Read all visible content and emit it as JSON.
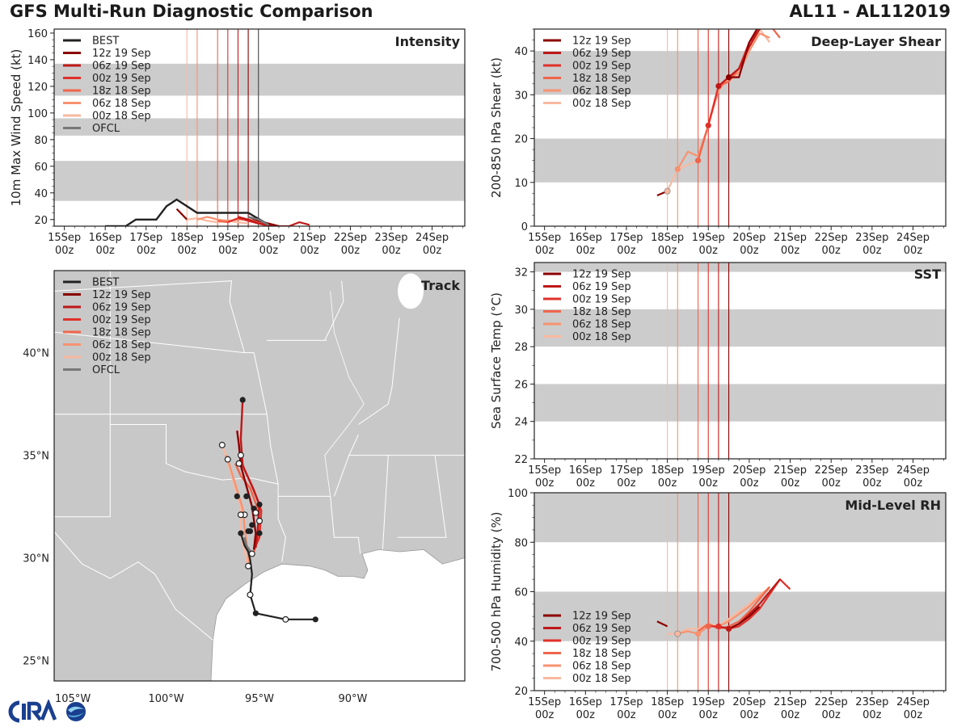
{
  "header": {
    "title": "GFS Multi-Run Diagnostic Comparison",
    "storm": "AL11 - AL112019"
  },
  "colors": {
    "band": "#cccccc",
    "best": "#222222",
    "ofcl": "#777777",
    "land": "#c8c8c8",
    "ocean": "#ffffff",
    "border": "#ffffff"
  },
  "runs": [
    {
      "name": "12z 19 Sep",
      "color": "#8b0000",
      "init_day": 19.5
    },
    {
      "name": "06z 19 Sep",
      "color": "#c01818",
      "init_day": 19.25
    },
    {
      "name": "00z 19 Sep",
      "color": "#e0302a",
      "init_day": 19.0
    },
    {
      "name": "18z 18 Sep",
      "color": "#f0654b",
      "init_day": 18.75
    },
    {
      "name": "06z 18 Sep",
      "color": "#f79270",
      "init_day": 18.25
    },
    {
      "name": "00z 18 Sep",
      "color": "#f9b9a0",
      "init_day": 18.0
    }
  ],
  "xaxis": {
    "days": [
      15,
      16,
      17,
      18,
      19,
      20,
      21,
      22,
      23,
      24
    ],
    "labels": [
      "15Sep",
      "16Sep",
      "17Sep",
      "18Sep",
      "19Sep",
      "20Sep",
      "21Sep",
      "22Sep",
      "23Sep",
      "24Sep"
    ],
    "sublabels": [
      "00z",
      "00z",
      "00z",
      "00z",
      "00z",
      "00z",
      "00z",
      "00z",
      "00z",
      "00z"
    ],
    "range": [
      14.75,
      24.8
    ]
  },
  "chart_data": [
    {
      "id": "intensity",
      "type": "line",
      "title": "Intensity",
      "ylabel": "10m Max Wind Speed (kt)",
      "ylim": [
        15,
        163
      ],
      "yticks": [
        20,
        40,
        60,
        80,
        100,
        120,
        140,
        160
      ],
      "bands": [
        [
          34,
          64
        ],
        [
          83,
          96
        ],
        [
          113,
          137
        ]
      ],
      "legend": [
        "BEST",
        "12z 19 Sep",
        "06z 19 Sep",
        "00z 19 Sep",
        "18z 18 Sep",
        "06z 18 Sep",
        "00z 18 Sep",
        "OFCL"
      ],
      "init_lines": [
        18.0,
        18.25,
        18.75,
        19.0,
        19.25,
        19.5,
        19.75
      ],
      "best": {
        "x": [
          16.0,
          16.5,
          16.75,
          17.25,
          17.5,
          17.75,
          18.25,
          18.5,
          19.0,
          19.5,
          20.0
        ],
        "y": [
          15,
          15,
          20,
          20,
          30,
          35,
          25,
          25,
          25,
          25,
          16
        ]
      },
      "ofcl": {
        "x": [
          19.5,
          19.75,
          20.0
        ],
        "y": [
          22,
          20,
          16
        ]
      },
      "series": [
        {
          "run": 0,
          "x": [
            19.5,
            19.75,
            20.0,
            20.25
          ],
          "y": [
            22,
            19,
            17,
            15
          ]
        },
        {
          "run": 1,
          "x": [
            19.25,
            19.5,
            19.75,
            20.0,
            20.25,
            20.5,
            20.75,
            21.0
          ],
          "y": [
            22,
            20,
            17,
            16,
            15,
            15,
            18,
            16
          ]
        },
        {
          "run": 2,
          "x": [
            19.0,
            19.25,
            19.5,
            19.75,
            20.0
          ],
          "y": [
            18,
            21,
            19,
            17,
            15
          ]
        },
        {
          "run": 3,
          "x": [
            18.75,
            19.0,
            19.25,
            19.5,
            19.75,
            20.0
          ],
          "y": [
            19,
            18,
            21,
            20,
            18,
            16
          ]
        },
        {
          "run": 4,
          "x": [
            18.25,
            18.5,
            18.75,
            19.0,
            19.25,
            19.5,
            19.75,
            20.0,
            20.25
          ],
          "y": [
            20,
            22,
            20,
            19,
            20,
            20,
            18,
            17,
            15
          ]
        },
        {
          "run": 5,
          "x": [
            18.0,
            18.25,
            18.5,
            18.75,
            19.0,
            19.25,
            19.5
          ],
          "y": [
            20,
            21,
            19,
            18,
            19,
            18,
            17
          ]
        },
        {
          "run": 0,
          "x": [
            17.75,
            18.0
          ],
          "y": [
            28,
            20
          ]
        }
      ]
    },
    {
      "id": "shear",
      "type": "line",
      "title": "Deep-Layer Shear",
      "ylabel": "200-850 hPa Shear (kt)",
      "ylim": [
        0,
        45
      ],
      "yticks": [
        0,
        10,
        20,
        30,
        40
      ],
      "bands": [
        [
          10,
          20
        ],
        [
          30,
          40
        ]
      ],
      "legend": [
        "12z 19 Sep",
        "06z 19 Sep",
        "00z 19 Sep",
        "18z 18 Sep",
        "06z 18 Sep",
        "00z 18 Sep"
      ],
      "init_lines": [
        18.0,
        18.25,
        18.75,
        19.0,
        19.25,
        19.5
      ],
      "series": [
        {
          "run": 0,
          "x": [
            19.5,
            19.75,
            20.0,
            20.25
          ],
          "y": [
            34,
            34,
            42,
            46
          ]
        },
        {
          "run": 1,
          "x": [
            19.25,
            19.5,
            19.75,
            20.0,
            20.25,
            20.5,
            20.75
          ],
          "y": [
            32,
            34,
            36,
            41,
            45,
            47,
            45
          ]
        },
        {
          "run": 2,
          "x": [
            19.0,
            19.25,
            19.5,
            19.75,
            20.0,
            20.25,
            20.5
          ],
          "y": [
            23,
            32,
            34,
            36,
            42,
            45,
            46
          ]
        },
        {
          "run": 3,
          "x": [
            18.75,
            19.0,
            19.25,
            19.5,
            19.75,
            20.0,
            20.25,
            20.5,
            20.75
          ],
          "y": [
            15,
            23,
            32,
            33,
            36,
            41,
            45,
            46,
            43
          ]
        },
        {
          "run": 4,
          "x": [
            18.25,
            18.5,
            18.75,
            19.0,
            19.25,
            19.5,
            19.75,
            20.0,
            20.25,
            20.5
          ],
          "y": [
            13,
            17,
            16,
            23,
            31,
            34,
            35,
            40,
            44,
            43
          ]
        },
        {
          "run": 5,
          "x": [
            18.0,
            18.25,
            18.5,
            18.75,
            19.0,
            19.25,
            19.5,
            19.75,
            20.0,
            20.25,
            20.5
          ],
          "y": [
            8,
            13,
            14,
            15,
            23,
            32,
            33,
            35,
            40,
            45,
            42
          ]
        },
        {
          "run": 0,
          "x": [
            17.75,
            18.0
          ],
          "y": [
            7,
            8
          ]
        }
      ],
      "markers": [
        [
          18.0,
          8
        ],
        [
          18.25,
          13
        ],
        [
          18.75,
          15
        ],
        [
          19.0,
          23
        ],
        [
          19.25,
          32
        ],
        [
          19.5,
          34
        ]
      ]
    },
    {
      "id": "sst",
      "type": "line",
      "title": "SST",
      "ylabel": "Sea Surface Temp (°C)",
      "ylim": [
        22,
        32.5
      ],
      "yticks": [
        22,
        24,
        26,
        28,
        30,
        32
      ],
      "bands": [
        [
          24,
          26
        ],
        [
          28,
          30
        ],
        [
          32,
          34
        ]
      ],
      "legend": [
        "12z 19 Sep",
        "06z 19 Sep",
        "00z 19 Sep",
        "18z 18 Sep",
        "06z 18 Sep",
        "00z 18 Sep"
      ],
      "init_lines": [
        18.0,
        18.25,
        18.75,
        19.0,
        19.25,
        19.5
      ],
      "series": [],
      "markers": []
    },
    {
      "id": "rh",
      "type": "line",
      "title": "Mid-Level RH",
      "ylabel": "700-500 hPa Humidity (%)",
      "ylim": [
        20,
        100
      ],
      "yticks": [
        20,
        40,
        60,
        80,
        100
      ],
      "bands": [
        [
          40,
          60
        ],
        [
          80,
          100
        ]
      ],
      "legend": [
        "12z 19 Sep",
        "06z 19 Sep",
        "00z 19 Sep",
        "18z 18 Sep",
        "06z 18 Sep",
        "00z 18 Sep"
      ],
      "init_lines": [
        18.0,
        18.25,
        18.75,
        19.0,
        19.25,
        19.5
      ],
      "series": [
        {
          "run": 0,
          "x": [
            19.5,
            19.75,
            20.0,
            20.25
          ],
          "y": [
            45,
            47,
            50,
            54
          ]
        },
        {
          "run": 1,
          "x": [
            19.25,
            19.5,
            19.75,
            20.0,
            20.25,
            20.5,
            20.75
          ],
          "y": [
            46,
            45,
            47,
            51,
            55,
            60,
            65
          ]
        },
        {
          "run": 2,
          "x": [
            19.0,
            19.25,
            19.5,
            19.75,
            20.0,
            20.25,
            20.5,
            20.75,
            21.0
          ],
          "y": [
            46,
            46,
            45,
            46,
            49,
            53,
            59,
            65,
            61
          ]
        },
        {
          "run": 3,
          "x": [
            18.75,
            19.0,
            19.25,
            19.5,
            19.75,
            20.0,
            20.25,
            20.5
          ],
          "y": [
            44,
            47,
            45,
            46,
            48,
            52,
            57,
            62
          ]
        },
        {
          "run": 4,
          "x": [
            18.25,
            18.5,
            18.75,
            19.0,
            19.25,
            19.5,
            19.75,
            20.0,
            20.25,
            20.5
          ],
          "y": [
            43,
            44,
            43,
            46,
            46,
            48,
            51,
            54,
            58,
            62
          ]
        },
        {
          "run": 5,
          "x": [
            18.0,
            18.25,
            18.5,
            18.75,
            19.0,
            19.25,
            19.5,
            19.75,
            20.0,
            20.25,
            20.5
          ],
          "y": [
            43,
            43,
            45,
            45,
            47,
            46,
            49,
            52,
            55,
            59,
            61
          ]
        },
        {
          "run": 0,
          "x": [
            17.75,
            18.0
          ],
          "y": [
            48,
            46
          ]
        }
      ],
      "markers": [
        [
          18.25,
          43
        ],
        [
          18.75,
          43
        ],
        [
          19.0,
          46
        ],
        [
          19.25,
          46
        ],
        [
          19.5,
          45
        ]
      ]
    },
    {
      "id": "track",
      "type": "scatter",
      "title": "Track",
      "lon_range": [
        -106.0,
        -84.0
      ],
      "lat_range": [
        24.0,
        44.0
      ],
      "lon_ticks": [
        -105,
        -100,
        -95,
        -90
      ],
      "lon_labels": [
        "105°W",
        "100°W",
        "95°W",
        "90°W"
      ],
      "lat_ticks": [
        25,
        30,
        35,
        40
      ],
      "lat_labels": [
        "25°N",
        "30°N",
        "35°N",
        "40°N"
      ],
      "legend": [
        "BEST",
        "12z 19 Sep",
        "06z 19 Sep",
        "00z 19 Sep",
        "18z 18 Sep",
        "06z 18 Sep",
        "00z 18 Sep",
        "OFCL"
      ],
      "best": [
        [
          -92.0,
          27.0
        ],
        [
          -93.6,
          27.0
        ],
        [
          -95.2,
          27.3
        ],
        [
          -95.5,
          28.2
        ],
        [
          -95.4,
          29.2
        ],
        [
          -95.5,
          29.9
        ],
        [
          -95.6,
          30.3
        ],
        [
          -95.8,
          30.6
        ],
        [
          -96.0,
          31.2
        ]
      ],
      "best_open": [
        [
          -93.6,
          27.0
        ],
        [
          -95.5,
          28.2
        ],
        [
          -95.4,
          30.2
        ]
      ],
      "ofcl": [
        [
          -95.4,
          30.2
        ],
        [
          -95.7,
          30.6
        ],
        [
          -95.8,
          31.0
        ]
      ],
      "series": [
        {
          "run": 0,
          "pts": [
            [
              -95.3,
              30.4
            ],
            [
              -95.2,
              31.2
            ],
            [
              -95.4,
              32.5
            ],
            [
              -95.7,
              33.5
            ],
            [
              -96.0,
              34.5
            ],
            [
              -96.1,
              35.5
            ],
            [
              -96.2,
              36.2
            ]
          ]
        },
        {
          "run": 1,
          "pts": [
            [
              -95.2,
              30.5
            ],
            [
              -95.1,
              31.3
            ],
            [
              -95.0,
              32.6
            ],
            [
              -95.4,
              33.5
            ],
            [
              -95.9,
              34.5
            ],
            [
              -96.0,
              35.8
            ],
            [
              -95.9,
              37.7
            ]
          ]
        },
        {
          "run": 2,
          "pts": [
            [
              -95.3,
              30.4
            ],
            [
              -95.0,
              31.0
            ],
            [
              -94.9,
              32.3
            ],
            [
              -95.3,
              33.3
            ],
            [
              -95.8,
              34.3
            ],
            [
              -96.1,
              35.0
            ]
          ]
        },
        {
          "run": 3,
          "pts": [
            [
              -95.3,
              30.3
            ],
            [
              -95.0,
              31.2
            ],
            [
              -95.1,
              32.4
            ],
            [
              -95.5,
              33.4
            ],
            [
              -96.0,
              34.0
            ],
            [
              -96.3,
              34.6
            ]
          ]
        },
        {
          "run": 4,
          "pts": [
            [
              -95.5,
              29.5
            ],
            [
              -95.6,
              30.1
            ],
            [
              -95.8,
              31.5
            ],
            [
              -95.9,
              32.4
            ],
            [
              -96.2,
              33.3
            ],
            [
              -96.6,
              34.5
            ],
            [
              -96.8,
              35.0
            ]
          ]
        },
        {
          "run": 5,
          "pts": [
            [
              -95.6,
              29.6
            ],
            [
              -95.8,
              30.3
            ],
            [
              -96.0,
              31.2
            ],
            [
              -96.0,
              32.5
            ],
            [
              -96.3,
              33.4
            ],
            [
              -96.7,
              34.7
            ],
            [
              -97.0,
              35.5
            ]
          ]
        }
      ],
      "dots_filled": [
        [
          -92.0,
          27.0
        ],
        [
          -95.2,
          27.3
        ],
        [
          -96.0,
          31.2
        ],
        [
          -95.6,
          31.3
        ],
        [
          -95.0,
          31.2
        ],
        [
          -95.3,
          32.4
        ],
        [
          -95.0,
          32.6
        ],
        [
          -95.7,
          33.0
        ],
        [
          -96.2,
          33.0
        ],
        [
          -95.9,
          37.7
        ],
        [
          -95.4,
          31.6
        ],
        [
          -95.5,
          31.3
        ]
      ],
      "dots_open": [
        [
          -93.6,
          27.0
        ],
        [
          -95.5,
          28.2
        ],
        [
          -95.4,
          30.2
        ],
        [
          -95.2,
          32.2
        ],
        [
          -95.0,
          31.8
        ],
        [
          -95.8,
          32.1
        ],
        [
          -96.0,
          32.1
        ],
        [
          -96.7,
          34.8
        ],
        [
          -96.1,
          34.6
        ],
        [
          -96.0,
          35.0
        ],
        [
          -97.0,
          35.5
        ],
        [
          -95.6,
          29.6
        ]
      ]
    }
  ]
}
